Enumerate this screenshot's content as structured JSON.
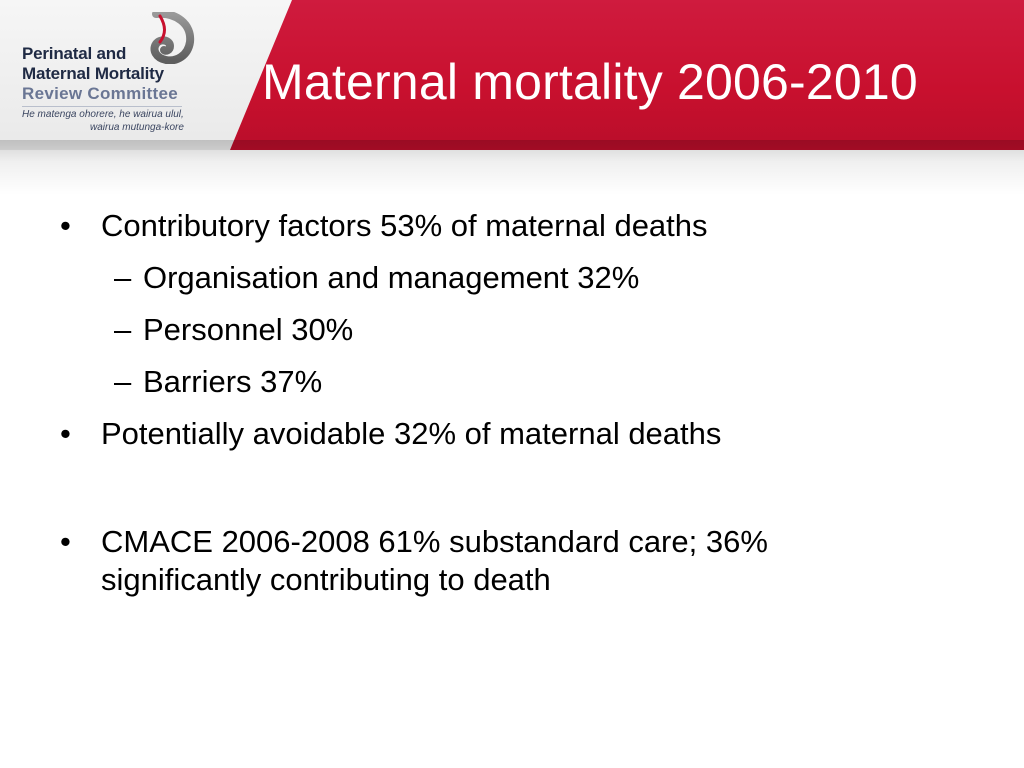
{
  "logo": {
    "line1": "Perinatal and",
    "line2": "Maternal Mortality",
    "line3": "Review Committee",
    "tagline1": "He matenga ohorere, he wairua ulul,",
    "tagline2": "wairua mutunga-kore"
  },
  "title": "Maternal mortality 2006-2010",
  "bullets": [
    {
      "level": 1,
      "marker": "•",
      "text": "Contributory factors 53% of maternal deaths"
    },
    {
      "level": 2,
      "marker": "–",
      "text": "Organisation and management 32%"
    },
    {
      "level": 2,
      "marker": "–",
      "text": "Personnel 30%"
    },
    {
      "level": 2,
      "marker": "–",
      "text": "Barriers 37%"
    },
    {
      "level": 1,
      "marker": "•",
      "text": "Potentially avoidable 32% of maternal deaths"
    },
    {
      "level": 1,
      "marker": "•",
      "text": "CMACE 2006-2008 61% substandard care; 36%"
    },
    {
      "level": 1,
      "marker": "",
      "text": "significantly contributing to death"
    }
  ],
  "colors": {
    "header_red": "#c8102e",
    "logo_navy": "#1f2a44",
    "body_text": "#000000"
  }
}
